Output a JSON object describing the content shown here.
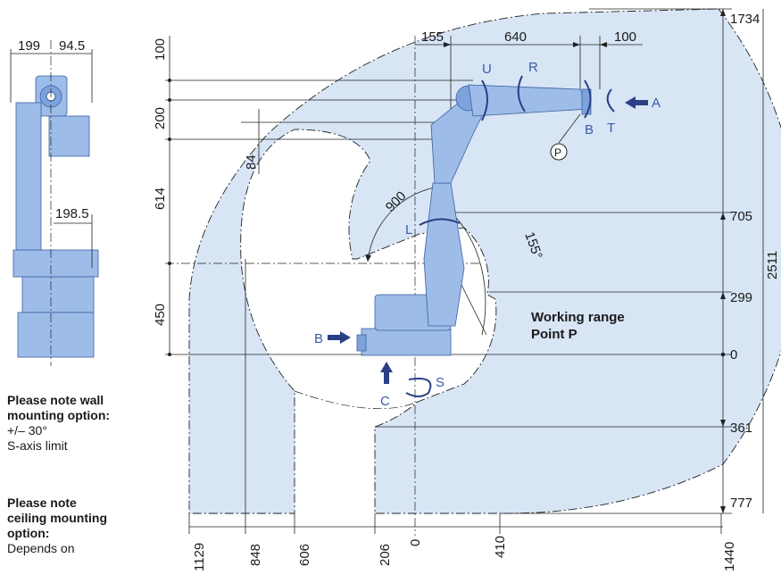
{
  "side_view": {
    "dims": {
      "left_width": "199",
      "right_width": "94.5",
      "lower_offset": "198.5"
    }
  },
  "main_view": {
    "top_dims": {
      "d155": "155",
      "d640": "640",
      "d100": "100"
    },
    "left_dims": {
      "d100": "100",
      "d200": "200",
      "d84": "84",
      "d614": "614",
      "d450": "450"
    },
    "right_dims": {
      "d1734": "1734",
      "d705": "705",
      "d299": "299",
      "d0": "0",
      "d361": "361",
      "d777": "777",
      "d2511": "2511"
    },
    "bottom_dims": {
      "d1129": "1129",
      "d848": "848",
      "d606": "606",
      "d206": "206",
      "d0": "0",
      "d410": "410",
      "d1440": "1440"
    },
    "radius_900": "900",
    "angle_155": "155°",
    "axes": {
      "U": "U",
      "R": "R",
      "B_wrist": "B",
      "T": "T",
      "A": "A",
      "L": "L",
      "S": "S",
      "B_base": "B",
      "C": "C",
      "P": "P"
    },
    "working_range_line1": "Working range",
    "working_range_line2": "Point P"
  },
  "notes": {
    "wall_title": "Please note wall mounting option:",
    "wall_value": "+/– 30°",
    "wall_text": "S-axis limit",
    "ceiling_title": "Please note ceiling mounting option:",
    "ceiling_text": "Depends on"
  },
  "colors": {
    "work_area": "#d7e5f5",
    "robot": "#9dbce8",
    "arrow": "#2a3f85"
  }
}
